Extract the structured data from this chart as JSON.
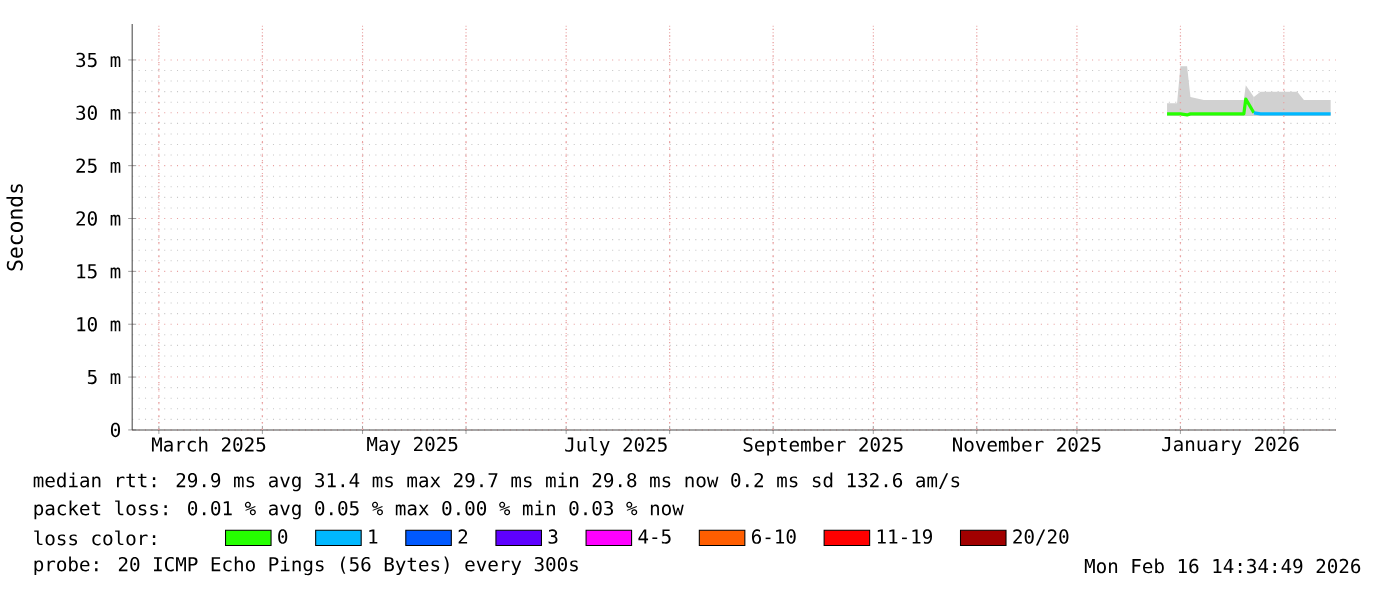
{
  "chart_data": {
    "type": "line",
    "ylabel": "Seconds",
    "legend_title": "loss color:",
    "legend": "bottom",
    "grid": true,
    "xlim": [
      "2025-02-21",
      "2026-02-16T14:30"
    ],
    "xticks": [
      {
        "value": "2025-03-01",
        "label": null
      },
      {
        "value": "2025-03-16",
        "label": "March 2025"
      },
      {
        "value": "2025-04-01",
        "label": null
      },
      {
        "value": "2025-05-01",
        "label": null
      },
      {
        "value": "2025-05-16",
        "label": "May 2025"
      },
      {
        "value": "2025-06-01",
        "label": null
      },
      {
        "value": "2025-07-01",
        "label": null
      },
      {
        "value": "2025-07-16",
        "label": "July 2025"
      },
      {
        "value": "2025-08-01",
        "label": null
      },
      {
        "value": "2025-09-01",
        "label": null
      },
      {
        "value": "2025-09-16",
        "label": "September 2025"
      },
      {
        "value": "2025-10-01",
        "label": null
      },
      {
        "value": "2025-11-01",
        "label": null
      },
      {
        "value": "2025-11-16",
        "label": "November 2025"
      },
      {
        "value": "2025-12-01",
        "label": null
      },
      {
        "value": "2026-01-01",
        "label": null
      },
      {
        "value": "2026-01-16",
        "label": "January 2026"
      },
      {
        "value": "2026-02-01",
        "label": null
      }
    ],
    "ylim": [
      0,
      38.4
    ],
    "yticks": [
      0,
      {
        "value": 5,
        "label": "5 m"
      },
      {
        "value": 10,
        "label": "10 m"
      },
      {
        "value": 15,
        "label": "15 m"
      },
      {
        "value": 20,
        "label": "20 m"
      },
      {
        "value": 25,
        "label": "25 m"
      },
      {
        "value": 30,
        "label": "30 m"
      },
      {
        "value": 35,
        "label": "35 m"
      }
    ],
    "series": [
      {
        "name": "0",
        "color": "#26ff00",
        "x": [
          "2025-12-28",
          "2025-12-31",
          "2026-01-01",
          "2026-01-03",
          "2026-01-04",
          "2026-01-08",
          "2026-01-12",
          "2026-01-16",
          "2026-01-20",
          "2026-01-20T14:00",
          "2026-01-23"
        ],
        "values": [
          29.9,
          29.9,
          29.9,
          29.8,
          29.9,
          29.9,
          29.9,
          29.9,
          29.9,
          31.3,
          30.0
        ],
        "lower": [
          29.7,
          29.7,
          29.7,
          29.7,
          29.7,
          29.7,
          29.7,
          29.7,
          29.7,
          29.7,
          29.7
        ],
        "upper": [
          30.9,
          30.9,
          34.4,
          34.4,
          31.5,
          31.2,
          31.2,
          31.2,
          31.2,
          32.6,
          31.5
        ]
      },
      {
        "name": "1",
        "color": "#00b8ff",
        "x": [
          "2026-01-23",
          "2026-01-25",
          "2026-01-30",
          "2026-02-05",
          "2026-02-07",
          "2026-02-11",
          "2026-02-15"
        ],
        "values": [
          30.0,
          29.9,
          29.9,
          29.9,
          29.9,
          29.9,
          29.9
        ],
        "lower": [
          29.7,
          29.7,
          29.7,
          29.7,
          29.7,
          29.7,
          29.7
        ],
        "upper": [
          31.5,
          32.0,
          32.0,
          32.0,
          31.2,
          31.2,
          31.2
        ]
      },
      {
        "name": "2",
        "color": "#0059ff"
      },
      {
        "name": "3",
        "color": "#5e00ff"
      },
      {
        "name": "4-5",
        "color": "#ff00ff"
      },
      {
        "name": "6-10",
        "color": "#ff5e00"
      },
      {
        "name": "11-19",
        "color": "#ff0000"
      },
      {
        "name": "20/20",
        "color": "#a10000"
      }
    ],
    "annotations": [
      "median rtt:  29.9 ms avg  31.4 ms max  29.7 ms min  29.8 ms now  0.2 ms sd  132.6   am/s",
      "packet loss: 0.01 % avg  0.05 % max  0.00 % min  0.03 % now",
      "probe:       20 ICMP Echo Pings (56 Bytes) every 300s",
      "Mon Feb 16 14:34:49 2026"
    ]
  }
}
